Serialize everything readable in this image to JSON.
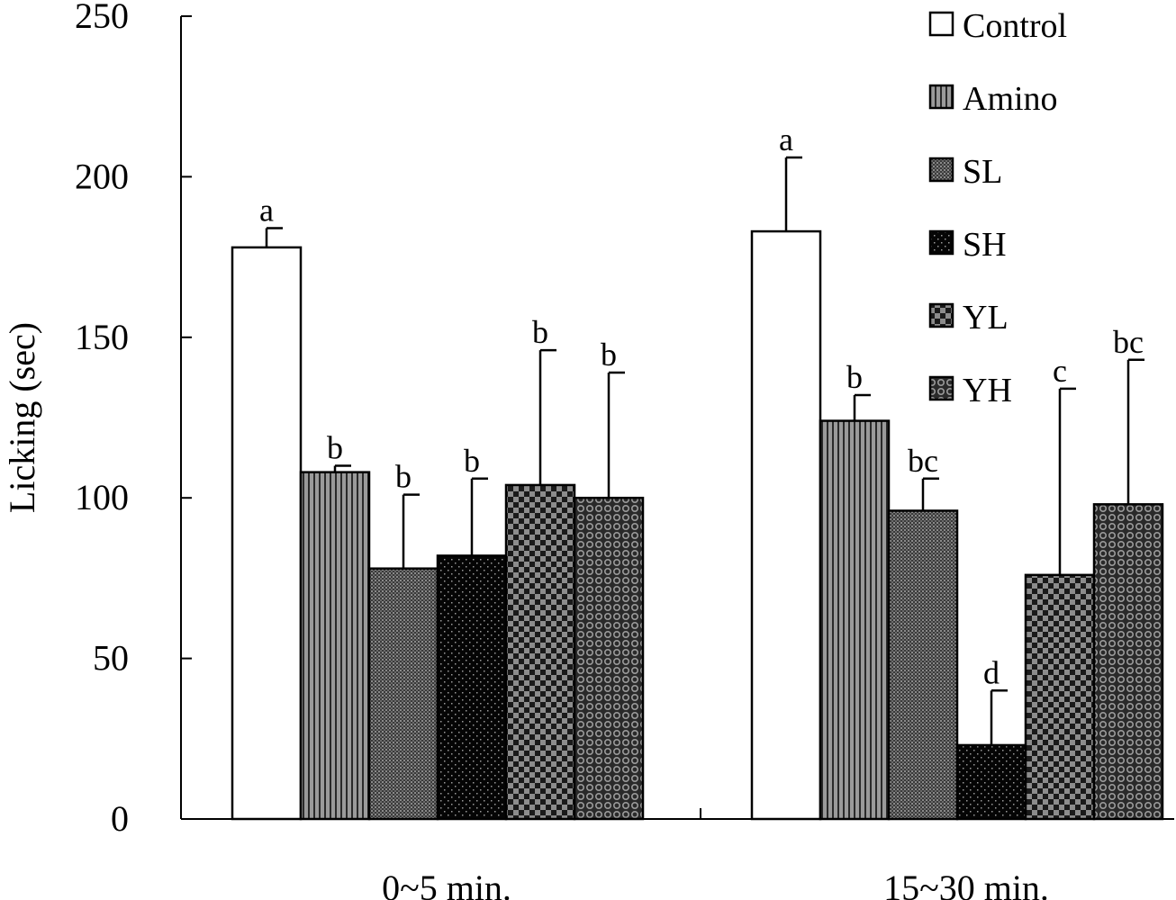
{
  "chart_data": {
    "type": "bar",
    "title": "",
    "xlabel": "",
    "ylabel": "Licking (sec)",
    "ylim": [
      0,
      250
    ],
    "yticks": [
      0,
      50,
      100,
      150,
      200,
      250
    ],
    "categories": [
      "0~5 min.",
      "15~30 min."
    ],
    "legend_position": "top-right",
    "series": [
      {
        "name": "Control",
        "values": [
          178,
          183
        ],
        "errors": [
          6,
          23
        ],
        "labels": [
          "a",
          "a"
        ],
        "pattern": "white"
      },
      {
        "name": "Amino",
        "values": [
          108,
          124
        ],
        "errors": [
          2,
          8
        ],
        "labels": [
          "b",
          "b"
        ],
        "pattern": "vstripe"
      },
      {
        "name": "SL",
        "values": [
          78,
          96
        ],
        "errors": [
          23,
          10
        ],
        "labels": [
          "b",
          "bc"
        ],
        "pattern": "finedot"
      },
      {
        "name": "SH",
        "values": [
          82,
          23
        ],
        "errors": [
          24,
          17
        ],
        "labels": [
          "b",
          "d"
        ],
        "pattern": "darkdot"
      },
      {
        "name": "YL",
        "values": [
          104,
          76
        ],
        "errors": [
          42,
          58
        ],
        "labels": [
          "b",
          "c"
        ],
        "pattern": "checker"
      },
      {
        "name": "YH",
        "values": [
          100,
          98
        ],
        "errors": [
          39,
          45
        ],
        "labels": [
          "b",
          "bc"
        ],
        "pattern": "circles"
      }
    ]
  }
}
